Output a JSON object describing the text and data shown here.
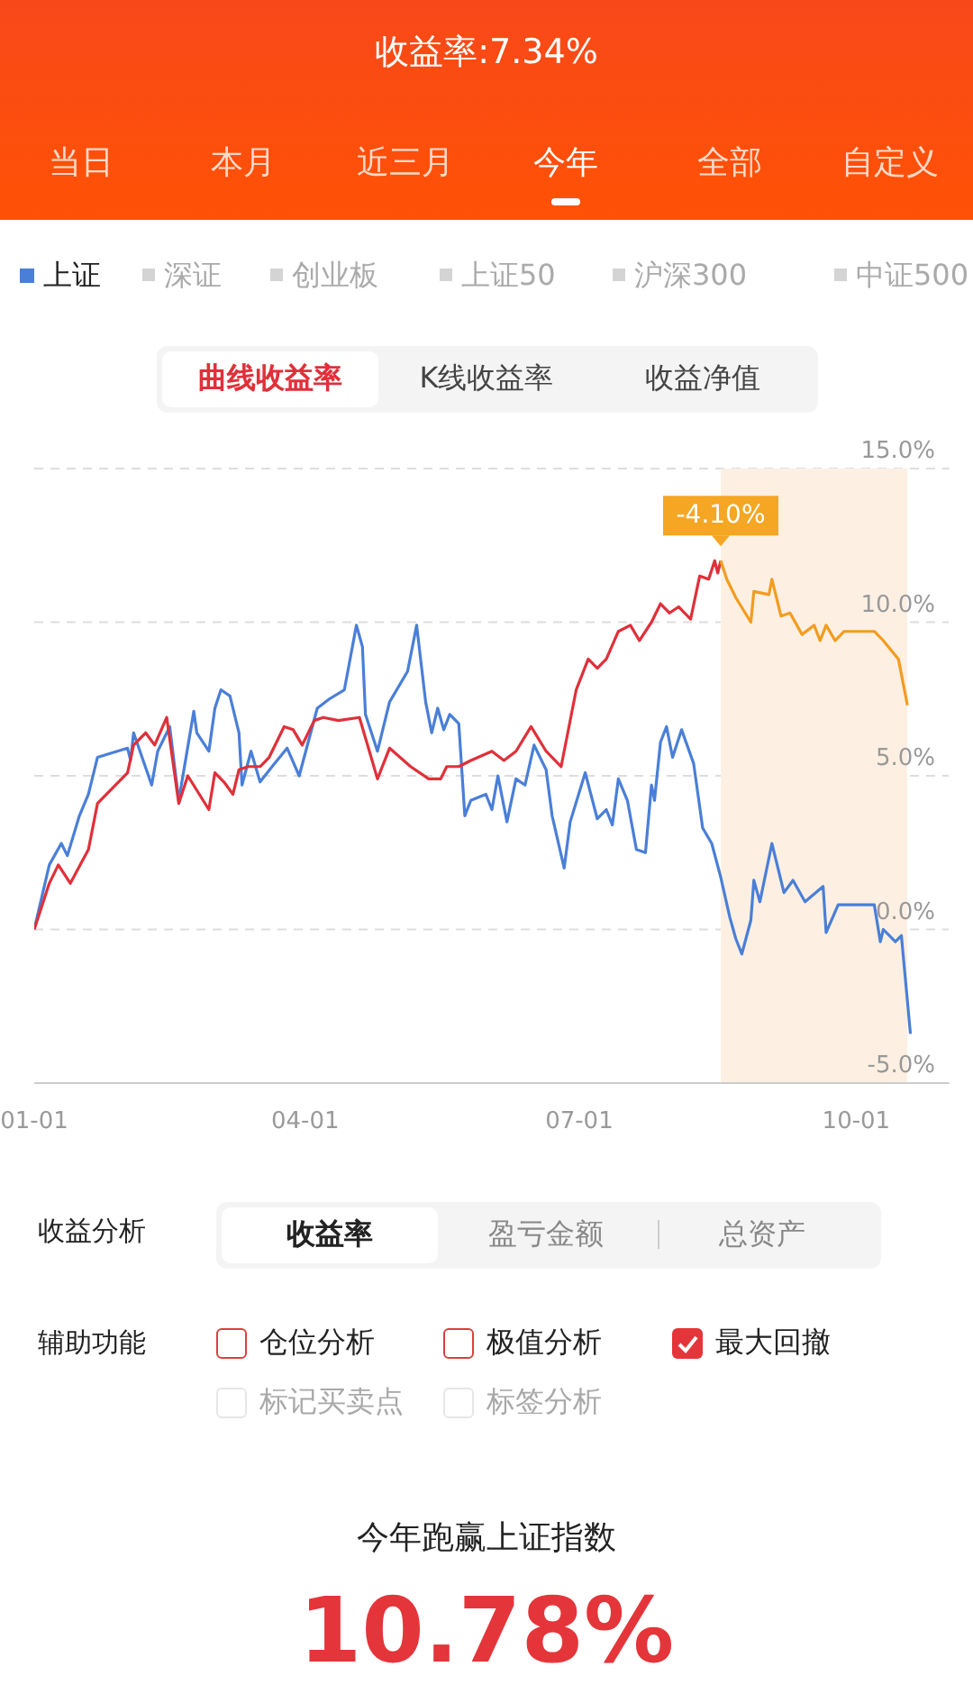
{
  "chart_data": {
    "type": "line",
    "title": "收益率:7.34%",
    "legend": "top",
    "grid": "y",
    "xlim": [
      "--01-01",
      "--11-01"
    ],
    "xticks": [
      {
        "value": "--01-01",
        "label": "01-01"
      },
      {
        "value": "--04-01",
        "label": "04-01"
      },
      {
        "value": "--07-01",
        "label": "07-01"
      },
      {
        "value": "--10-01",
        "label": "10-01"
      }
    ],
    "ylim": [
      -5,
      15
    ],
    "yticks": [
      {
        "value": -5,
        "label": "-5.0%"
      },
      {
        "value": 0,
        "label": "0.0%"
      },
      {
        "value": 5,
        "label": "5.0%"
      },
      {
        "value": 10,
        "label": "10.0%"
      },
      {
        "value": 15,
        "label": "15.0%"
      }
    ],
    "bands": [
      {
        "axis": "x",
        "from": "--08-17",
        "to": "--10-18",
        "color": "#fdf0e3"
      }
    ],
    "series": [
      {
        "name": "上证",
        "color": "#4a7fd8",
        "x": [
          "--01-01",
          "--01-06",
          "--01-10",
          "--01-12",
          "--01-16",
          "--01-19",
          "--01-22",
          "--02-01",
          "--02-02",
          "--02-03",
          "--02-09",
          "--02-11",
          "--02-15",
          "--02-18",
          "--02-23",
          "--02-24",
          "--02-28",
          "--03-02",
          "--03-04",
          "--03-07",
          "--03-10",
          "--03-11",
          "--03-14",
          "--03-17",
          "--03-21",
          "--03-26",
          "--03-30",
          "--04-05",
          "--04-09",
          "--04-14",
          "--04-18",
          "--04-20",
          "--04-21",
          "--04-25",
          "--04-29",
          "--05-05",
          "--05-08",
          "--05-11",
          "--05-13",
          "--05-15",
          "--05-17",
          "--05-19",
          "--05-22",
          "--05-24",
          "--05-26",
          "--05-31",
          "--06-02",
          "--06-04",
          "--06-07",
          "--06-10",
          "--06-13",
          "--06-16",
          "--06-20",
          "--06-22",
          "--06-26",
          "--06-28",
          "--07-03",
          "--07-07",
          "--07-10",
          "--07-12",
          "--07-14",
          "--07-17",
          "--07-20",
          "--07-23",
          "--07-25",
          "--07-26",
          "--07-28",
          "--07-30",
          "--08-01",
          "--08-04",
          "--08-08",
          "--08-11",
          "--08-14",
          "--08-17",
          "--08-20",
          "--08-22",
          "--08-24",
          "--08-27",
          "--08-28",
          "--08-30",
          "--09-03",
          "--09-07",
          "--09-10",
          "--09-14",
          "--09-20",
          "--09-21",
          "--09-25",
          "--10-07",
          "--10-09",
          "--10-10",
          "--10-14",
          "--10-16",
          "--10-19"
        ],
        "values": [
          0,
          2.1,
          2.8,
          2.4,
          3.7,
          4.4,
          5.6,
          5.9,
          5.5,
          6.4,
          4.7,
          5.8,
          6.6,
          4.2,
          7.1,
          6.4,
          5.8,
          7.2,
          7.8,
          7.6,
          6.4,
          4.7,
          5.8,
          4.8,
          5.3,
          5.9,
          5.0,
          7.2,
          7.5,
          7.8,
          9.9,
          9.2,
          7.0,
          5.8,
          7.4,
          8.4,
          9.9,
          7.4,
          6.4,
          7.2,
          6.5,
          7.0,
          6.7,
          3.7,
          4.2,
          4.4,
          3.9,
          5.0,
          3.5,
          4.9,
          4.7,
          6.0,
          5.2,
          3.7,
          2.0,
          3.5,
          5.1,
          3.6,
          3.9,
          3.4,
          4.9,
          4.2,
          2.6,
          2.5,
          4.7,
          4.2,
          6.1,
          6.6,
          5.6,
          6.5,
          5.4,
          3.3,
          2.8,
          1.7,
          0.4,
          -0.3,
          -0.8,
          0.3,
          1.6,
          0.9,
          2.8,
          1.2,
          1.6,
          0.9,
          1.4,
          -0.1,
          0.8,
          0.8,
          -0.4,
          0.0,
          -0.4,
          -0.2,
          -3.4
        ]
      },
      {
        "color": "#e0303a",
        "x": [
          "--01-01",
          "--01-06",
          "--01-09",
          "--01-13",
          "--01-19",
          "--01-22",
          "--02-01",
          "--02-03",
          "--02-07",
          "--02-10",
          "--02-14",
          "--02-18",
          "--02-21",
          "--02-28",
          "--03-02",
          "--03-05",
          "--03-08",
          "--03-10",
          "--03-13",
          "--03-17",
          "--03-20",
          "--03-25",
          "--03-28",
          "--03-31",
          "--04-04",
          "--04-07",
          "--04-12",
          "--04-19",
          "--04-22",
          "--04-25",
          "--04-29",
          "--05-06",
          "--05-12",
          "--05-16",
          "--05-18",
          "--05-22",
          "--05-26",
          "--06-02",
          "--06-06",
          "--06-10",
          "--06-15",
          "--06-20",
          "--06-25",
          "--06-30",
          "--07-04",
          "--07-07",
          "--07-10",
          "--07-14",
          "--07-18",
          "--07-21",
          "--07-25",
          "--07-28",
          "--07-31",
          "--08-03",
          "--08-07",
          "--08-10",
          "--08-13",
          "--08-15",
          "--08-16",
          "--08-17"
        ],
        "values": [
          0,
          1.5,
          2.1,
          1.5,
          2.6,
          4.1,
          5.1,
          6.0,
          6.4,
          6.0,
          6.9,
          4.1,
          5.0,
          3.9,
          5.1,
          4.8,
          4.4,
          5.2,
          5.3,
          5.3,
          5.6,
          6.6,
          6.5,
          6.0,
          6.8,
          6.9,
          6.8,
          6.9,
          5.9,
          4.9,
          5.9,
          5.3,
          4.9,
          4.9,
          5.3,
          5.3,
          5.5,
          5.8,
          5.5,
          5.8,
          6.6,
          5.8,
          5.3,
          7.8,
          8.8,
          8.5,
          8.8,
          9.7,
          9.9,
          9.4,
          10.0,
          10.6,
          10.3,
          10.5,
          10.1,
          11.5,
          11.4,
          12.0,
          11.6,
          12.0
        ]
      },
      {
        "color": "#f39c1f",
        "x": [
          "--08-17",
          "--08-19",
          "--08-22",
          "--08-27",
          "--08-28",
          "--09-02",
          "--09-03",
          "--09-06",
          "--09-09",
          "--09-13",
          "--09-17",
          "--09-19",
          "--09-21",
          "--09-24",
          "--09-27",
          "--10-07",
          "--10-10",
          "--10-15",
          "--10-18"
        ],
        "values": [
          12.0,
          11.4,
          10.8,
          10.0,
          11.0,
          10.9,
          11.4,
          10.2,
          10.3,
          9.6,
          9.9,
          9.4,
          9.9,
          9.4,
          9.7,
          9.7,
          9.4,
          8.8,
          7.3
        ]
      }
    ],
    "annotations": [
      "当日",
      "本月",
      "近三月",
      "今年",
      "全部",
      "自定义",
      "深证",
      "创业板",
      "上证50",
      "沪深300",
      "中证500",
      "曲线收益率",
      "K线收益率",
      "收益净值",
      "收益分析",
      "收益率",
      "盈亏金额",
      "总资产",
      "辅助功能",
      "仓位分析",
      "极值分析",
      "最大回撤",
      "标记买卖点",
      "标签分析",
      "今年跑赢上证指数",
      "10.78%",
      {
        "text": "-4.10%",
        "x": "--08-17",
        "y": 12.0
      }
    ]
  }
}
